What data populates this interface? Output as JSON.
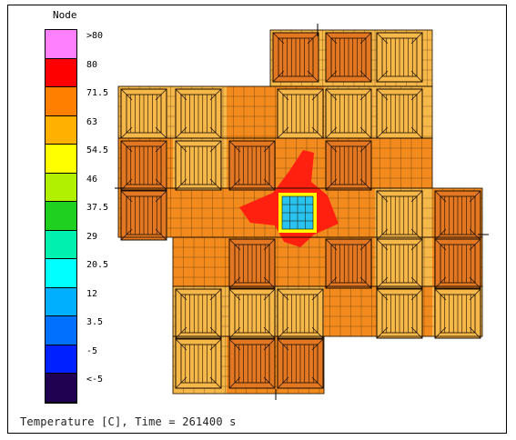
{
  "legend": {
    "title": "Node",
    "labels": [
      ">80",
      "80",
      "71.5",
      "63",
      "54.5",
      "46",
      "37.5",
      "29",
      "20.5",
      "12",
      "3.5",
      "-5",
      "<-5"
    ],
    "colors": [
      "#ff80ff",
      "#ff0000",
      "#ff8000",
      "#ffb000",
      "#ffff00",
      "#b0f000",
      "#20d020",
      "#00f0b0",
      "#00ffff",
      "#00b0ff",
      "#0070ff",
      "#0020ff",
      "#200050"
    ]
  },
  "caption": "Temperature [C], Time = 261400 s",
  "colors": {
    "slab": "#f28a1e",
    "warm_tile": "#f7b84a",
    "hot_tile": "#e37722",
    "hot_core": "#ff2010",
    "cold_core": "#29c3f0",
    "core_border": "#ffff00"
  }
}
